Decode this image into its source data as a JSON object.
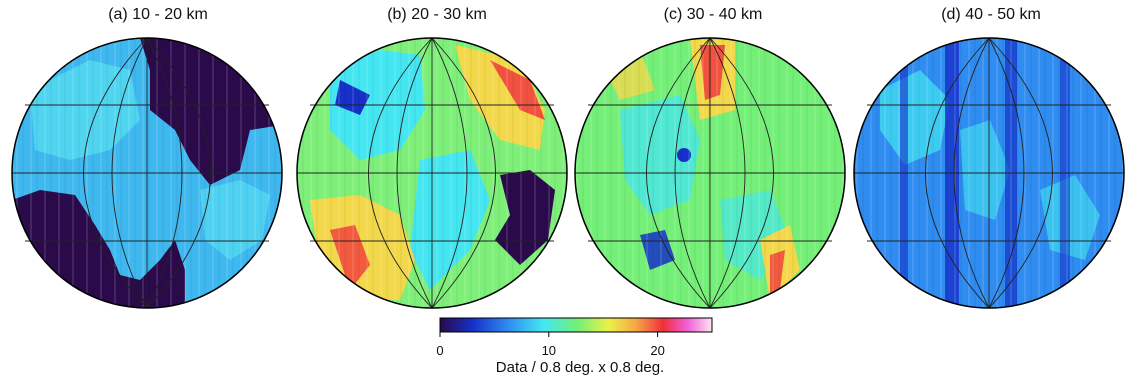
{
  "panels": [
    {
      "title": "(a) 10 - 20 km",
      "map": "density-map-10-20"
    },
    {
      "title": "(b) 20 - 30 km",
      "map": "density-map-20-30"
    },
    {
      "title": "(c) 30 - 40 km",
      "map": "density-map-30-40"
    },
    {
      "title": "(d) 40 - 50 km",
      "map": "density-map-40-50"
    }
  ],
  "colorbar": {
    "ticks": [
      "0",
      "10",
      "20"
    ],
    "tick_values": [
      0,
      10,
      20
    ],
    "range": [
      0,
      25
    ],
    "label": "Data / 0.8 deg. x 0.8 deg.",
    "colors": [
      "#2a0a4a",
      "#1630c8",
      "#2f8cf0",
      "#44e6f2",
      "#6ff07a",
      "#ecf04a",
      "#f6a744",
      "#f0303c",
      "#f060d8",
      "#ffe4f0"
    ]
  }
}
